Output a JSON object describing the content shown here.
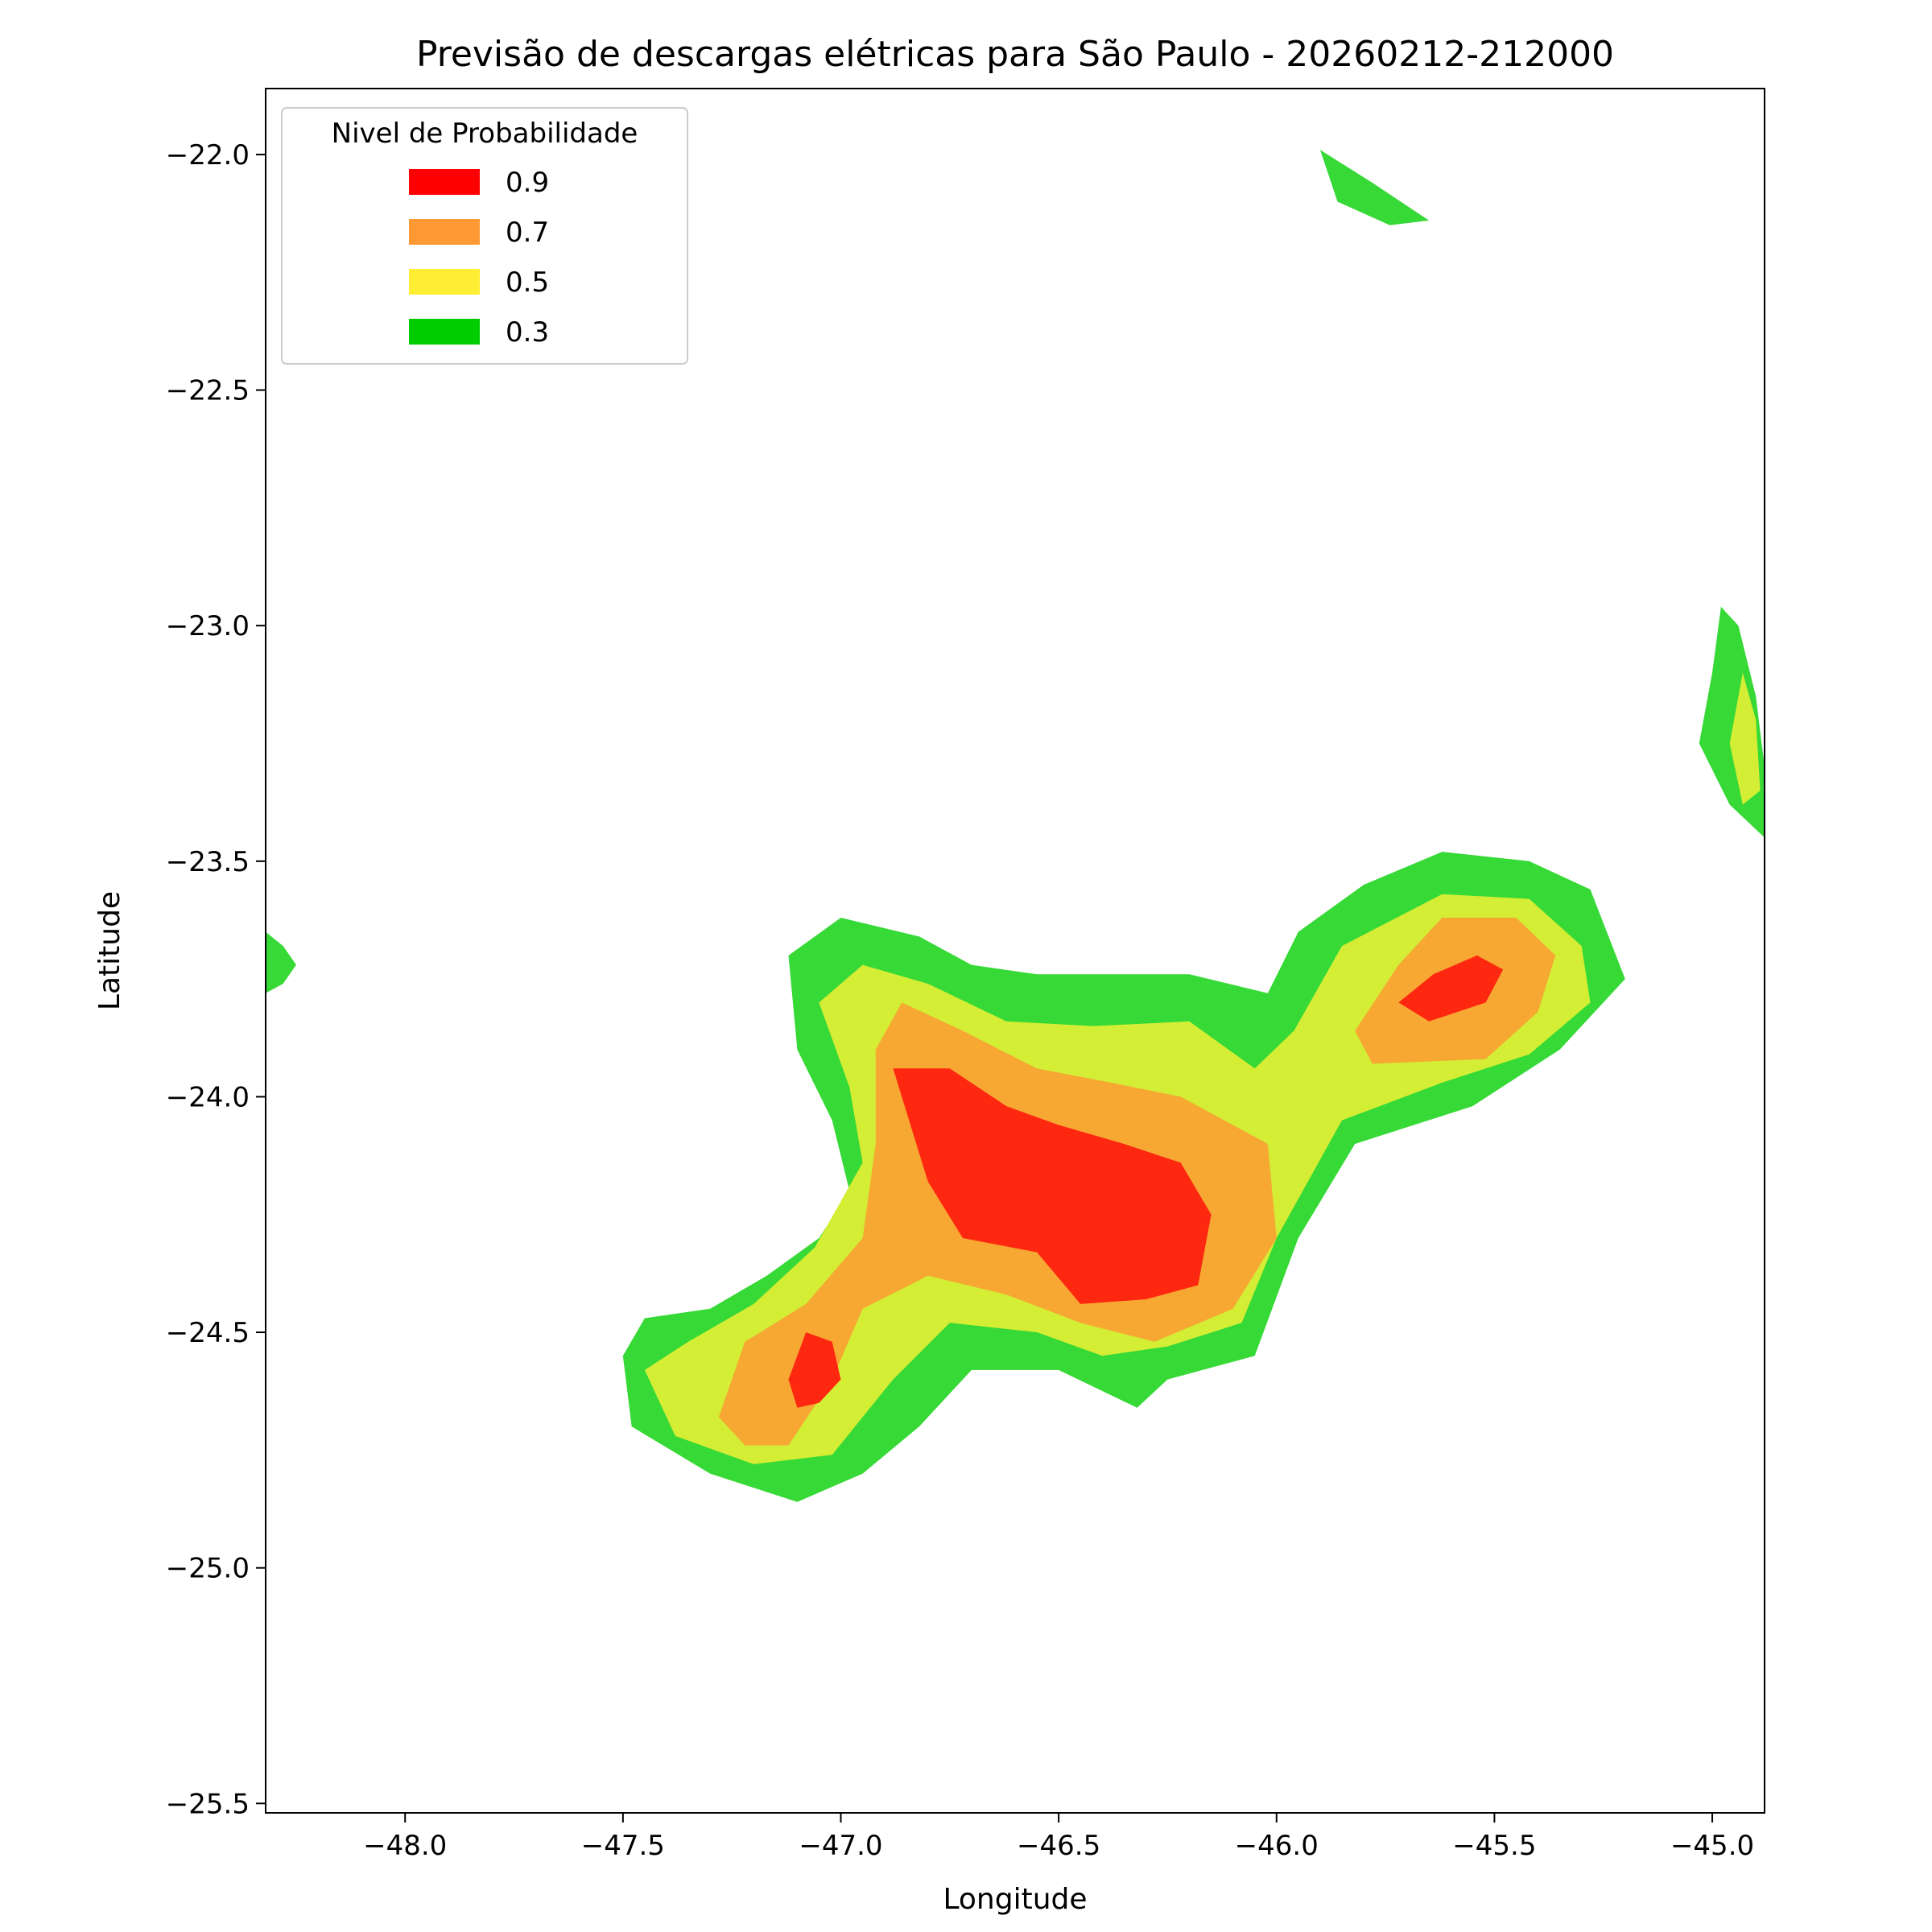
{
  "chart_data": {
    "type": "contour",
    "title": "Previsão de descargas elétricas para São Paulo - 20260212-212000",
    "xlabel": "Longitude",
    "ylabel": "Latitude",
    "xlim": [
      -48.32,
      -44.88
    ],
    "ylim": [
      -25.52,
      -21.86
    ],
    "xticks": [
      -48.0,
      -47.5,
      -47.0,
      -46.5,
      -46.0,
      -45.5,
      -45.0
    ],
    "xtick_labels": [
      "−48.0",
      "−47.5",
      "−47.0",
      "−46.5",
      "−46.0",
      "−45.5",
      "−45.0"
    ],
    "yticks": [
      -22.0,
      -22.5,
      -23.0,
      -23.5,
      -24.0,
      -24.5,
      -25.0,
      -25.5
    ],
    "ytick_labels": [
      "−22.0",
      "−22.5",
      "−23.0",
      "−23.5",
      "−24.0",
      "−24.5",
      "−25.0",
      "−25.5"
    ],
    "legend": {
      "title": "Nivel de Probabilidade",
      "placement": "top-left",
      "entries": [
        {
          "label": "0.9",
          "color": "#ff0000"
        },
        {
          "label": "0.7",
          "color": "#ff9933"
        },
        {
          "label": "0.5",
          "color": "#ffee33"
        },
        {
          "label": "0.3",
          "color": "#00cc00"
        }
      ]
    },
    "fill_colors": {
      "0.3": "#36d936",
      "0.5": "#d4ed35",
      "0.7": "#f6a833",
      "0.9": "#fe2710"
    },
    "regions": [
      {
        "level": "0.3",
        "points": [
          [
            -47.5,
            -24.55
          ],
          [
            -47.45,
            -24.47
          ],
          [
            -47.3,
            -24.45
          ],
          [
            -47.17,
            -24.38
          ],
          [
            -47.05,
            -24.3
          ],
          [
            -46.98,
            -24.2
          ],
          [
            -47.02,
            -24.05
          ],
          [
            -47.1,
            -23.9
          ],
          [
            -47.12,
            -23.7
          ],
          [
            -47.0,
            -23.62
          ],
          [
            -46.82,
            -23.66
          ],
          [
            -46.7,
            -23.72
          ],
          [
            -46.55,
            -23.74
          ],
          [
            -46.4,
            -23.74
          ],
          [
            -46.2,
            -23.74
          ],
          [
            -46.02,
            -23.78
          ],
          [
            -45.95,
            -23.65
          ],
          [
            -45.8,
            -23.55
          ],
          [
            -45.62,
            -23.48
          ],
          [
            -45.42,
            -23.5
          ],
          [
            -45.28,
            -23.56
          ],
          [
            -45.2,
            -23.75
          ],
          [
            -45.35,
            -23.9
          ],
          [
            -45.55,
            -24.02
          ],
          [
            -45.82,
            -24.1
          ],
          [
            -45.95,
            -24.3
          ],
          [
            -46.05,
            -24.55
          ],
          [
            -46.25,
            -24.6
          ],
          [
            -46.32,
            -24.66
          ],
          [
            -46.5,
            -24.58
          ],
          [
            -46.7,
            -24.58
          ],
          [
            -46.82,
            -24.7
          ],
          [
            -46.95,
            -24.8
          ],
          [
            -47.1,
            -24.86
          ],
          [
            -47.3,
            -24.8
          ],
          [
            -47.48,
            -24.7
          ]
        ]
      },
      {
        "level": "0.5",
        "points": [
          [
            -47.45,
            -24.58
          ],
          [
            -47.35,
            -24.52
          ],
          [
            -47.2,
            -24.44
          ],
          [
            -47.06,
            -24.32
          ],
          [
            -46.95,
            -24.14
          ],
          [
            -46.98,
            -23.98
          ],
          [
            -47.05,
            -23.8
          ],
          [
            -46.95,
            -23.72
          ],
          [
            -46.8,
            -23.76
          ],
          [
            -46.62,
            -23.84
          ],
          [
            -46.42,
            -23.85
          ],
          [
            -46.2,
            -23.84
          ],
          [
            -46.05,
            -23.94
          ],
          [
            -45.96,
            -23.86
          ],
          [
            -45.85,
            -23.68
          ],
          [
            -45.62,
            -23.57
          ],
          [
            -45.42,
            -23.58
          ],
          [
            -45.3,
            -23.68
          ],
          [
            -45.28,
            -23.8
          ],
          [
            -45.42,
            -23.91
          ],
          [
            -45.62,
            -23.97
          ],
          [
            -45.85,
            -24.05
          ],
          [
            -46.0,
            -24.3
          ],
          [
            -46.08,
            -24.48
          ],
          [
            -46.25,
            -24.53
          ],
          [
            -46.4,
            -24.55
          ],
          [
            -46.55,
            -24.5
          ],
          [
            -46.75,
            -24.48
          ],
          [
            -46.88,
            -24.6
          ],
          [
            -47.02,
            -24.76
          ],
          [
            -47.2,
            -24.78
          ],
          [
            -47.38,
            -24.72
          ]
        ]
      },
      {
        "level": "0.7",
        "points": [
          [
            -47.28,
            -24.68
          ],
          [
            -47.22,
            -24.52
          ],
          [
            -47.08,
            -24.44
          ],
          [
            -46.95,
            -24.3
          ],
          [
            -46.92,
            -24.1
          ],
          [
            -46.92,
            -23.9
          ],
          [
            -46.86,
            -23.8
          ],
          [
            -46.72,
            -23.86
          ],
          [
            -46.55,
            -23.94
          ],
          [
            -46.38,
            -23.97
          ],
          [
            -46.22,
            -24.0
          ],
          [
            -46.02,
            -24.1
          ],
          [
            -46.0,
            -24.3
          ],
          [
            -46.1,
            -24.45
          ],
          [
            -46.28,
            -24.52
          ],
          [
            -46.45,
            -24.48
          ],
          [
            -46.62,
            -24.42
          ],
          [
            -46.8,
            -24.38
          ],
          [
            -46.95,
            -24.45
          ],
          [
            -47.02,
            -24.6
          ],
          [
            -47.12,
            -24.74
          ],
          [
            -47.22,
            -24.74
          ]
        ]
      },
      {
        "level": "0.7",
        "points": [
          [
            -45.82,
            -23.86
          ],
          [
            -45.72,
            -23.72
          ],
          [
            -45.62,
            -23.62
          ],
          [
            -45.45,
            -23.62
          ],
          [
            -45.36,
            -23.7
          ],
          [
            -45.4,
            -23.82
          ],
          [
            -45.52,
            -23.92
          ],
          [
            -45.78,
            -23.93
          ]
        ]
      },
      {
        "level": "0.9",
        "points": [
          [
            -46.88,
            -23.94
          ],
          [
            -46.75,
            -23.94
          ],
          [
            -46.62,
            -24.02
          ],
          [
            -46.5,
            -24.06
          ],
          [
            -46.35,
            -24.1
          ],
          [
            -46.22,
            -24.14
          ],
          [
            -46.15,
            -24.25
          ],
          [
            -46.18,
            -24.4
          ],
          [
            -46.3,
            -24.43
          ],
          [
            -46.45,
            -24.44
          ],
          [
            -46.55,
            -24.33
          ],
          [
            -46.72,
            -24.3
          ],
          [
            -46.8,
            -24.18
          ]
        ]
      },
      {
        "level": "0.9",
        "points": [
          [
            -45.72,
            -23.8
          ],
          [
            -45.64,
            -23.74
          ],
          [
            -45.54,
            -23.7
          ],
          [
            -45.48,
            -23.73
          ],
          [
            -45.52,
            -23.8
          ],
          [
            -45.65,
            -23.84
          ]
        ]
      },
      {
        "level": "0.9",
        "points": [
          [
            -47.12,
            -24.6
          ],
          [
            -47.08,
            -24.5
          ],
          [
            -47.02,
            -24.52
          ],
          [
            -47.0,
            -24.6
          ],
          [
            -47.05,
            -24.65
          ],
          [
            -47.1,
            -24.66
          ]
        ]
      },
      {
        "level": "0.3",
        "points": [
          [
            -45.9,
            -21.99
          ],
          [
            -45.78,
            -22.06
          ],
          [
            -45.65,
            -22.14
          ],
          [
            -45.74,
            -22.15
          ],
          [
            -45.86,
            -22.1
          ]
        ]
      },
      {
        "level": "0.3",
        "points": [
          [
            -45.03,
            -23.25
          ],
          [
            -45.0,
            -23.1
          ],
          [
            -44.98,
            -22.96
          ],
          [
            -44.94,
            -23.0
          ],
          [
            -44.9,
            -23.15
          ],
          [
            -44.88,
            -23.3
          ],
          [
            -44.88,
            -23.45
          ],
          [
            -44.96,
            -23.38
          ]
        ]
      },
      {
        "level": "0.5",
        "points": [
          [
            -44.96,
            -23.25
          ],
          [
            -44.93,
            -23.1
          ],
          [
            -44.9,
            -23.2
          ],
          [
            -44.89,
            -23.35
          ],
          [
            -44.93,
            -23.38
          ]
        ]
      },
      {
        "level": "0.3",
        "points": [
          [
            -48.32,
            -23.65
          ],
          [
            -48.28,
            -23.68
          ],
          [
            -48.25,
            -23.72
          ],
          [
            -48.28,
            -23.76
          ],
          [
            -48.32,
            -23.78
          ]
        ]
      }
    ]
  }
}
